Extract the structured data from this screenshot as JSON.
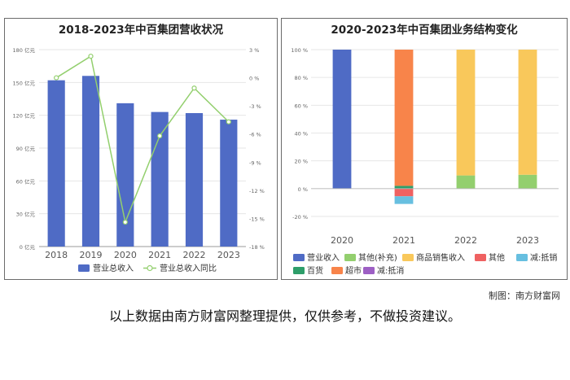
{
  "left_chart": {
    "title": "2018-2023年中百集团营收状况",
    "chart_data": {
      "type": "bar",
      "categories": [
        "2018",
        "2019",
        "2020",
        "2021",
        "2022",
        "2023"
      ],
      "series": [
        {
          "name": "营业总收入",
          "kind": "bar",
          "axis": "left",
          "color": "#4f6bc5",
          "values": [
            152,
            156,
            131,
            123,
            122,
            116
          ]
        },
        {
          "name": "营业总收入同比",
          "kind": "line",
          "axis": "right",
          "color": "#93cf6e",
          "values": [
            0.0,
            2.3,
            -15.4,
            -6.2,
            -1.1,
            -4.7
          ]
        }
      ],
      "y_left": {
        "unit": "亿元",
        "ylim": [
          0,
          180
        ],
        "ticks": [
          0,
          30,
          60,
          90,
          120,
          150,
          180
        ],
        "tick_labels": [
          "0 亿元",
          "30 亿元",
          "60 亿元",
          "90 亿元",
          "120 亿元",
          "150 亿元",
          "180 亿元"
        ]
      },
      "y_right": {
        "unit": "%",
        "ylim": [
          -18,
          3
        ],
        "ticks": [
          3,
          0,
          -3,
          -6,
          -9,
          -12,
          -15,
          -18
        ],
        "tick_labels": [
          "3 %",
          "0 %",
          "-3 %",
          "-6 %",
          "-9 %",
          "-12 %",
          "-15 %",
          "-18 %"
        ]
      },
      "grid": true,
      "legend_position": "bottom"
    }
  },
  "right_chart": {
    "title": "2020-2023年中百集团业务结构变化",
    "chart_data": {
      "type": "bar",
      "stacked": true,
      "categories": [
        "2020",
        "2021",
        "2022",
        "2023"
      ],
      "series": [
        {
          "name": "营业收入",
          "color": "#4f6bc5",
          "values": [
            100,
            0,
            0,
            0
          ]
        },
        {
          "name": "其他(补充)",
          "color": "#93cf6e",
          "values": [
            0,
            0,
            9.5,
            10
          ]
        },
        {
          "name": "商品销售收入",
          "color": "#f9c85b",
          "values": [
            0,
            0,
            90.5,
            90
          ]
        },
        {
          "name": "其他",
          "color": "#ef6161",
          "values": [
            0,
            -5.5,
            0,
            0
          ]
        },
        {
          "name": "减:抵销",
          "color": "#67bfe0",
          "values": [
            0,
            -5.5,
            0,
            0
          ]
        },
        {
          "name": "百货",
          "color": "#2e9e6a",
          "values": [
            0,
            2,
            0,
            0
          ]
        },
        {
          "name": "超市",
          "color": "#f8844a",
          "values": [
            0,
            98,
            0,
            0
          ]
        },
        {
          "name": "减:抵消",
          "color": "#9d5fc4",
          "values": [
            0,
            0,
            0,
            0
          ]
        }
      ],
      "y": {
        "unit": "%",
        "ylim": [
          -20,
          100
        ],
        "ticks": [
          100,
          80,
          60,
          40,
          20,
          0,
          -20
        ],
        "tick_labels": [
          "100 %",
          "80 %",
          "60 %",
          "40 %",
          "20 %",
          "0 %",
          "-20 %"
        ]
      },
      "grid": true,
      "legend_position": "bottom"
    }
  },
  "credit": "制图：南方财富网",
  "footer": "以上数据由南方财富网整理提供，仅供参考，不做投资建议。"
}
